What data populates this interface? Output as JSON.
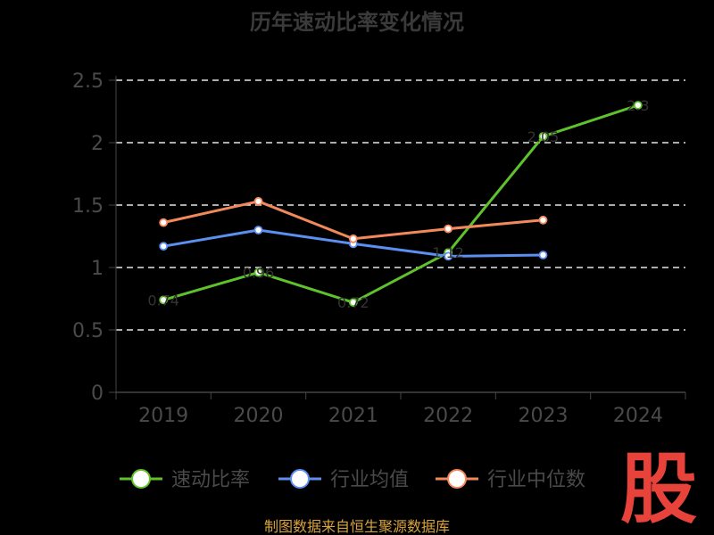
{
  "chart_data": {
    "type": "line",
    "title": "历年速动比率变化情况",
    "categories": [
      "2019",
      "2020",
      "2021",
      "2022",
      "2023",
      "2024"
    ],
    "ylim": [
      0,
      2.5
    ],
    "yticks": [
      "0",
      "0.5",
      "1",
      "1.5",
      "2",
      "2.5"
    ],
    "grid": true,
    "legend_position": "bottom",
    "series": [
      {
        "name": "速动比率",
        "color": "#5fc22d",
        "values": [
          0.74,
          0.96,
          0.72,
          1.12,
          2.05,
          2.3
        ]
      },
      {
        "name": "行业均值",
        "color": "#5b8ff0",
        "values": [
          1.17,
          1.3,
          1.19,
          1.09,
          1.1,
          null
        ]
      },
      {
        "name": "行业中位数",
        "color": "#f2895a",
        "values": [
          1.36,
          1.53,
          1.23,
          1.31,
          1.38,
          null
        ]
      }
    ],
    "data_labels": [
      "0.74",
      "0.96",
      "0.72",
      "1.12",
      "2.05",
      "2.3"
    ],
    "source": "制图数据来自恒生聚源数据库",
    "watermark": "股"
  }
}
